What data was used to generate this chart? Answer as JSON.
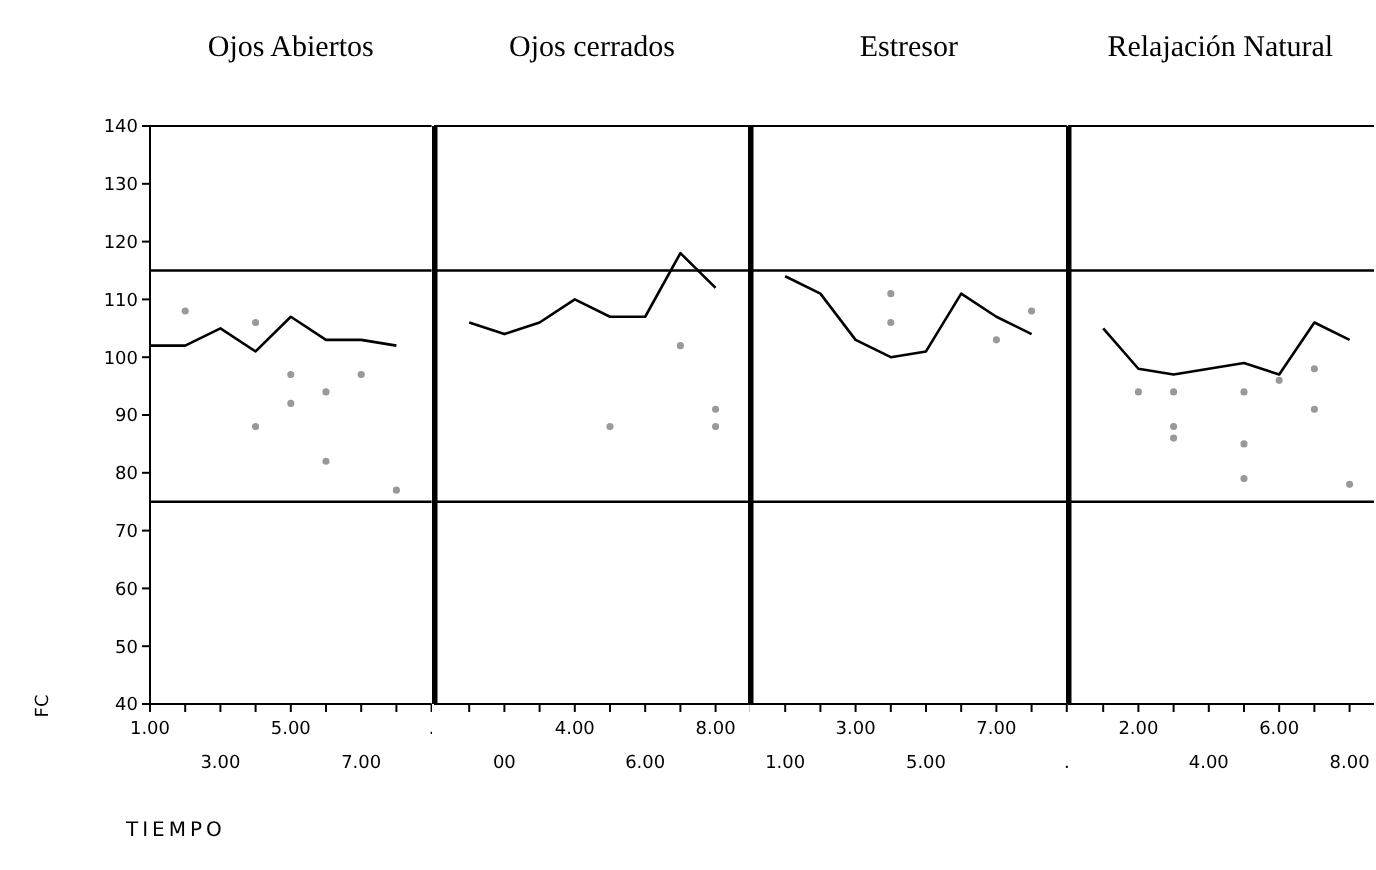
{
  "chart_data": [
    {
      "type": "line",
      "title": "Ojos Abiertos",
      "xlabel": "TIEMPO",
      "ylabel": "FC",
      "categories": [
        "1.00",
        null,
        "3.00",
        null,
        "5.00",
        null,
        "7.00",
        null,
        "."
      ],
      "ylim": [
        40,
        140
      ],
      "yticks": [
        40,
        50,
        60,
        70,
        80,
        90,
        100,
        110,
        120,
        130,
        140
      ],
      "grid": false,
      "legend": false,
      "ref_lines": [
        {
          "axis": "y",
          "value": 115,
          "color": "#000000"
        },
        {
          "axis": "y",
          "value": 75,
          "color": "#000000"
        }
      ],
      "series": [
        {
          "color": "#000000",
          "marker": "none",
          "values": [
            102,
            102,
            105,
            101,
            107,
            103,
            103,
            102,
            null
          ]
        },
        {
          "type": "scatter",
          "color": "#999999",
          "marker": "circle",
          "values": [
            null,
            108,
            null,
            106,
            97,
            94,
            97,
            77,
            null
          ]
        },
        {
          "type": "scatter",
          "color": "#999999",
          "marker": "circle",
          "values": [
            null,
            null,
            null,
            88,
            92,
            82,
            null,
            null,
            null
          ]
        }
      ]
    },
    {
      "type": "line",
      "title": "Ojos cerrados",
      "categories": [
        null,
        "00",
        null,
        "4.00",
        null,
        "6.00",
        null,
        "8.00",
        null
      ],
      "ylim": [
        40,
        140
      ],
      "tick_labels": "x",
      "grid": false,
      "legend": false,
      "ref_lines": [
        {
          "axis": "y",
          "value": 115,
          "color": "#000000"
        },
        {
          "axis": "y",
          "value": 75,
          "color": "#000000"
        }
      ],
      "series": [
        {
          "color": "#000000",
          "marker": "none",
          "values": [
            106,
            104,
            106,
            110,
            107,
            107,
            118,
            112,
            null
          ]
        },
        {
          "type": "scatter",
          "color": "#999999",
          "marker": "circle",
          "values": [
            null,
            null,
            null,
            null,
            88,
            null,
            102,
            91,
            null
          ]
        },
        {
          "type": "scatter",
          "color": "#999999",
          "marker": "circle",
          "values": [
            null,
            null,
            null,
            null,
            null,
            null,
            null,
            88,
            null
          ]
        }
      ]
    },
    {
      "type": "line",
      "title": "Estresor",
      "categories": [
        "1.00",
        null,
        "3.00",
        null,
        "5.00",
        null,
        "7.00",
        null,
        "."
      ],
      "ylim": [
        40,
        140
      ],
      "tick_labels": "x",
      "grid": false,
      "legend": false,
      "ref_lines": [
        {
          "axis": "y",
          "value": 115,
          "color": "#000000"
        },
        {
          "axis": "y",
          "value": 75,
          "color": "#000000"
        }
      ],
      "series": [
        {
          "color": "#000000",
          "marker": "none",
          "values": [
            114,
            111,
            103,
            100,
            101,
            111,
            107,
            104,
            null
          ]
        },
        {
          "type": "scatter",
          "color": "#999999",
          "marker": "circle",
          "values": [
            null,
            null,
            null,
            111,
            null,
            null,
            103,
            108,
            null
          ]
        },
        {
          "type": "scatter",
          "color": "#999999",
          "marker": "circle",
          "values": [
            null,
            null,
            null,
            106,
            null,
            null,
            null,
            null,
            null
          ]
        }
      ]
    },
    {
      "type": "line",
      "title": "Relajación Natural",
      "categories": [
        null,
        "2.00",
        null,
        "4.00",
        null,
        "6.00",
        null,
        "8.00"
      ],
      "ylim": [
        40,
        140
      ],
      "tick_labels": "x",
      "grid": false,
      "legend": false,
      "ref_lines": [
        {
          "axis": "y",
          "value": 115,
          "color": "#000000"
        },
        {
          "axis": "y",
          "value": 75,
          "color": "#000000"
        }
      ],
      "series": [
        {
          "color": "#000000",
          "marker": "none",
          "values": [
            105,
            98,
            97,
            98,
            99,
            97,
            106,
            103
          ]
        },
        {
          "type": "scatter",
          "color": "#999999",
          "marker": "circle",
          "values": [
            null,
            94,
            94,
            null,
            94,
            96,
            98,
            78
          ]
        },
        {
          "type": "scatter",
          "color": "#999999",
          "marker": "circle",
          "values": [
            null,
            null,
            88,
            null,
            85,
            null,
            91,
            null
          ]
        },
        {
          "type": "scatter",
          "color": "#999999",
          "marker": "circle",
          "values": [
            null,
            null,
            86,
            null,
            79,
            null,
            null,
            null
          ]
        }
      ]
    }
  ]
}
